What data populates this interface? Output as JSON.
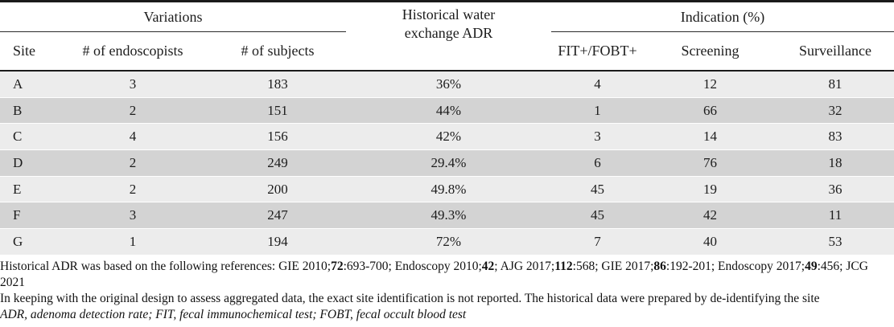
{
  "table": {
    "group_headers": {
      "variations": "Variations",
      "historical_adr_line1": "Historical water",
      "historical_adr_line2": "exchange ADR",
      "indication": "Indication (%)"
    },
    "columns": {
      "site": "Site",
      "endoscopists": "# of endoscopists",
      "subjects": "# of subjects",
      "fit": "FIT+/FOBT+",
      "screening": "Screening",
      "surveillance": "Surveillance"
    },
    "rows": [
      {
        "site": "A",
        "endoscopists": "3",
        "subjects": "183",
        "adr": "36%",
        "fit": "4",
        "screening": "12",
        "surveillance": "81"
      },
      {
        "site": "B",
        "endoscopists": "2",
        "subjects": "151",
        "adr": "44%",
        "fit": "1",
        "screening": "66",
        "surveillance": "32"
      },
      {
        "site": "C",
        "endoscopists": "4",
        "subjects": "156",
        "adr": "42%",
        "fit": "3",
        "screening": "14",
        "surveillance": "83"
      },
      {
        "site": "D",
        "endoscopists": "2",
        "subjects": "249",
        "adr": "29.4%",
        "fit": "6",
        "screening": "76",
        "surveillance": "18"
      },
      {
        "site": "E",
        "endoscopists": "2",
        "subjects": "200",
        "adr": "49.8%",
        "fit": "45",
        "screening": "19",
        "surveillance": "36"
      },
      {
        "site": "F",
        "endoscopists": "3",
        "subjects": "247",
        "adr": "49.3%",
        "fit": "45",
        "screening": "42",
        "surveillance": "11"
      },
      {
        "site": "G",
        "endoscopists": "1",
        "subjects": "194",
        "adr": "72%",
        "fit": "7",
        "screening": "40",
        "surveillance": "53"
      }
    ],
    "row_colors": {
      "odd": "#ececec",
      "even": "#d3d3d3"
    }
  },
  "footnotes": {
    "ref_segments": [
      "Historical ADR was based on the following references: GIE 2010;",
      "72",
      ":693-700; Endoscopy 2010;",
      "42",
      "; AJG 2017;",
      "112",
      ":568; GIE 2017;",
      "86",
      ":192-201; Endoscopy 2017;",
      "49",
      ":456; JCG 2021",
      ""
    ],
    "note_deidentify": "In keeping with the original design to assess aggregated data, the exact site identification is not reported. The historical data were prepared by de-identifying the site",
    "abbreviations": "ADR, adenoma detection rate; FIT, fecal immunochemical test; FOBT, fecal occult blood test"
  }
}
